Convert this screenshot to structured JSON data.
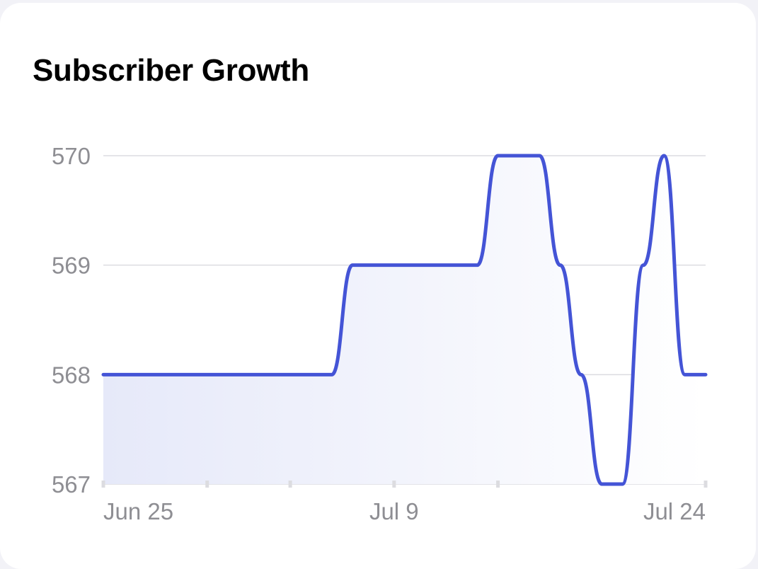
{
  "card": {
    "title": "Subscriber Growth"
  },
  "colors": {
    "line": "#4454d6",
    "fill_start": "#e6e9f9",
    "fill_end": "#ffffff",
    "grid": "#dcdce0",
    "tick_text": "#8e8e93",
    "background": "#f2f2f7",
    "card": "#ffffff"
  },
  "chart_data": {
    "type": "area",
    "title": "Subscriber Growth",
    "xlabel": "",
    "ylabel": "",
    "x_labels": [
      "Jun 25",
      "Jul 9",
      "Jul 24"
    ],
    "x_tick_dates": [
      "Jun 25",
      "Jun 30",
      "Jul 4",
      "Jul 9",
      "Jul 14",
      "Jul 24"
    ],
    "xlim": [
      "Jun 25",
      "Jul 24"
    ],
    "ylim": [
      567,
      570
    ],
    "y_ticks": [
      567,
      568,
      569,
      570
    ],
    "grid": "horizontal",
    "series": [
      {
        "x": [
          "Jun 25",
          "Jul 6",
          "Jul 7",
          "Jul 13",
          "Jul 14",
          "Jul 16",
          "Jul 17",
          "Jul 18",
          "Jul 19",
          "Jul 20",
          "Jul 21",
          "Jul 22",
          "Jul 23",
          "Jul 24"
        ],
        "values": [
          568,
          568,
          569,
          569,
          570,
          570,
          569,
          568,
          567,
          567,
          569,
          570,
          568,
          568
        ]
      }
    ]
  }
}
